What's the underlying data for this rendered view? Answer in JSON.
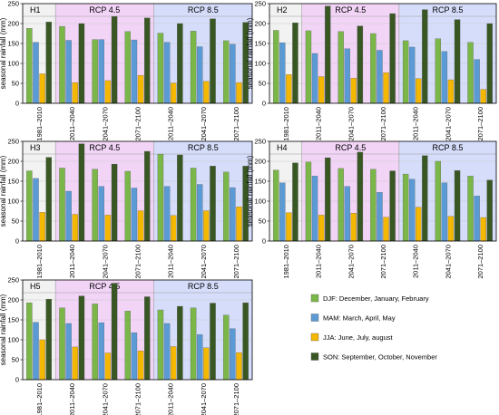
{
  "colors": {
    "DJF": "#7ab648",
    "MAM": "#5b9bd5",
    "JJA": "#f5b800",
    "SON": "#385723",
    "bg_hist": "#f2f2f2",
    "bg_rcp45": "#f2d4f7",
    "bg_rcp85": "#d6ddfa",
    "axis": "#000000",
    "grid": "#c8c8c8"
  },
  "legend": [
    {
      "key": "DJF",
      "label": "DJF: December, January, February"
    },
    {
      "key": "MAM",
      "label": "MAM: March, April, May"
    },
    {
      "key": "JJA",
      "label": "JJA: June, July, august"
    },
    {
      "key": "SON",
      "label": "SON: September, October, November"
    }
  ],
  "chart_data": [
    {
      "type": "bar",
      "title": "H1",
      "ylabel": "seasonal rainfall (mm)",
      "ylim": [
        0,
        250
      ],
      "yticks": [
        0,
        50,
        100,
        150,
        200,
        250
      ],
      "groups": [
        "",
        "RCP 4.5",
        "RCP 8.5"
      ],
      "categories": [
        "1981–2010",
        "2011–2040",
        "2041–2070",
        "2071–2100",
        "2011–2040",
        "2041–2070",
        "2071–2100"
      ],
      "series": [
        {
          "name": "DJF",
          "values": [
            188,
            193,
            160,
            180,
            176,
            181,
            157
          ]
        },
        {
          "name": "MAM",
          "values": [
            153,
            158,
            160,
            159,
            153,
            142,
            148
          ]
        },
        {
          "name": "JJA",
          "values": [
            74,
            52,
            57,
            70,
            51,
            55,
            52
          ]
        },
        {
          "name": "SON",
          "values": [
            204,
            200,
            218,
            214,
            200,
            212,
            203
          ]
        }
      ]
    },
    {
      "type": "bar",
      "title": "H2",
      "ylabel": "seasonal rainfall (mm)",
      "ylim": [
        0,
        250
      ],
      "yticks": [
        0,
        50,
        100,
        150,
        200,
        250
      ],
      "groups": [
        "",
        "RCP 4.5",
        "RCP 8.5"
      ],
      "categories": [
        "1981–2010",
        "2011–2040",
        "2041–2070",
        "2071–2100",
        "2011–2040",
        "2041–2070",
        "2071–2100"
      ],
      "series": [
        {
          "name": "DJF",
          "values": [
            183,
            182,
            180,
            175,
            157,
            162,
            153
          ]
        },
        {
          "name": "MAM",
          "values": [
            152,
            125,
            137,
            133,
            141,
            130,
            110
          ]
        },
        {
          "name": "JJA",
          "values": [
            72,
            67,
            63,
            77,
            62,
            59,
            35
          ]
        },
        {
          "name": "SON",
          "values": [
            202,
            244,
            194,
            225,
            235,
            210,
            200
          ]
        }
      ]
    },
    {
      "type": "bar",
      "title": "H3",
      "ylabel": "seasonal rainfall (mm)",
      "ylim": [
        0,
        250
      ],
      "yticks": [
        0,
        50,
        100,
        150,
        200,
        250
      ],
      "groups": [
        "",
        "RCP 4.5",
        "RCP 8.5"
      ],
      "categories": [
        "1981–2010",
        "2011–2040",
        "2041–2070",
        "2071–2100",
        "2011–2040",
        "2041–2070",
        "2071–2100"
      ],
      "series": [
        {
          "name": "DJF",
          "values": [
            176,
            183,
            180,
            175,
            218,
            183,
            173
          ]
        },
        {
          "name": "MAM",
          "values": [
            157,
            125,
            137,
            133,
            137,
            142,
            134
          ]
        },
        {
          "name": "JJA",
          "values": [
            72,
            67,
            65,
            76,
            64,
            76,
            86
          ]
        },
        {
          "name": "SON",
          "values": [
            210,
            244,
            193,
            225,
            216,
            188,
            188
          ]
        }
      ]
    },
    {
      "type": "bar",
      "title": "H4",
      "ylabel": "seasonal rainfall (mm)",
      "ylim": [
        0,
        250
      ],
      "yticks": [
        0,
        50,
        100,
        150,
        200,
        250
      ],
      "groups": [
        "",
        "RCP 4.5",
        "RCP 8.5"
      ],
      "categories": [
        "1981–2010",
        "2011–2040",
        "2041–2070",
        "2071–2100",
        "2011–2040",
        "2041–2070",
        "2071–2100"
      ],
      "series": [
        {
          "name": "DJF",
          "values": [
            178,
            198,
            182,
            180,
            168,
            200,
            163
          ]
        },
        {
          "name": "MAM",
          "values": [
            146,
            163,
            137,
            122,
            155,
            146,
            113
          ]
        },
        {
          "name": "JJA",
          "values": [
            71,
            65,
            70,
            60,
            85,
            62,
            59
          ]
        },
        {
          "name": "SON",
          "values": [
            196,
            209,
            223,
            176,
            214,
            177,
            153
          ]
        }
      ]
    },
    {
      "type": "bar",
      "title": "H5",
      "ylabel": "seasonal rainfall (mm)",
      "ylim": [
        0,
        250
      ],
      "yticks": [
        0,
        50,
        100,
        150,
        200,
        250
      ],
      "groups": [
        "",
        "RCP 4.5",
        "RCP 8.5"
      ],
      "categories": [
        "1981–2010",
        "2011–2040",
        "2041–2070",
        "2071–2100",
        "2011–2040",
        "2041–2070",
        "2071–2100"
      ],
      "series": [
        {
          "name": "DJF",
          "values": [
            193,
            180,
            190,
            172,
            175,
            180,
            162
          ]
        },
        {
          "name": "MAM",
          "values": [
            144,
            141,
            143,
            118,
            141,
            113,
            128
          ]
        },
        {
          "name": "JJA",
          "values": [
            100,
            82,
            67,
            72,
            83,
            80,
            68
          ]
        },
        {
          "name": "SON",
          "values": [
            202,
            210,
            242,
            208,
            184,
            192,
            193
          ]
        }
      ]
    }
  ]
}
